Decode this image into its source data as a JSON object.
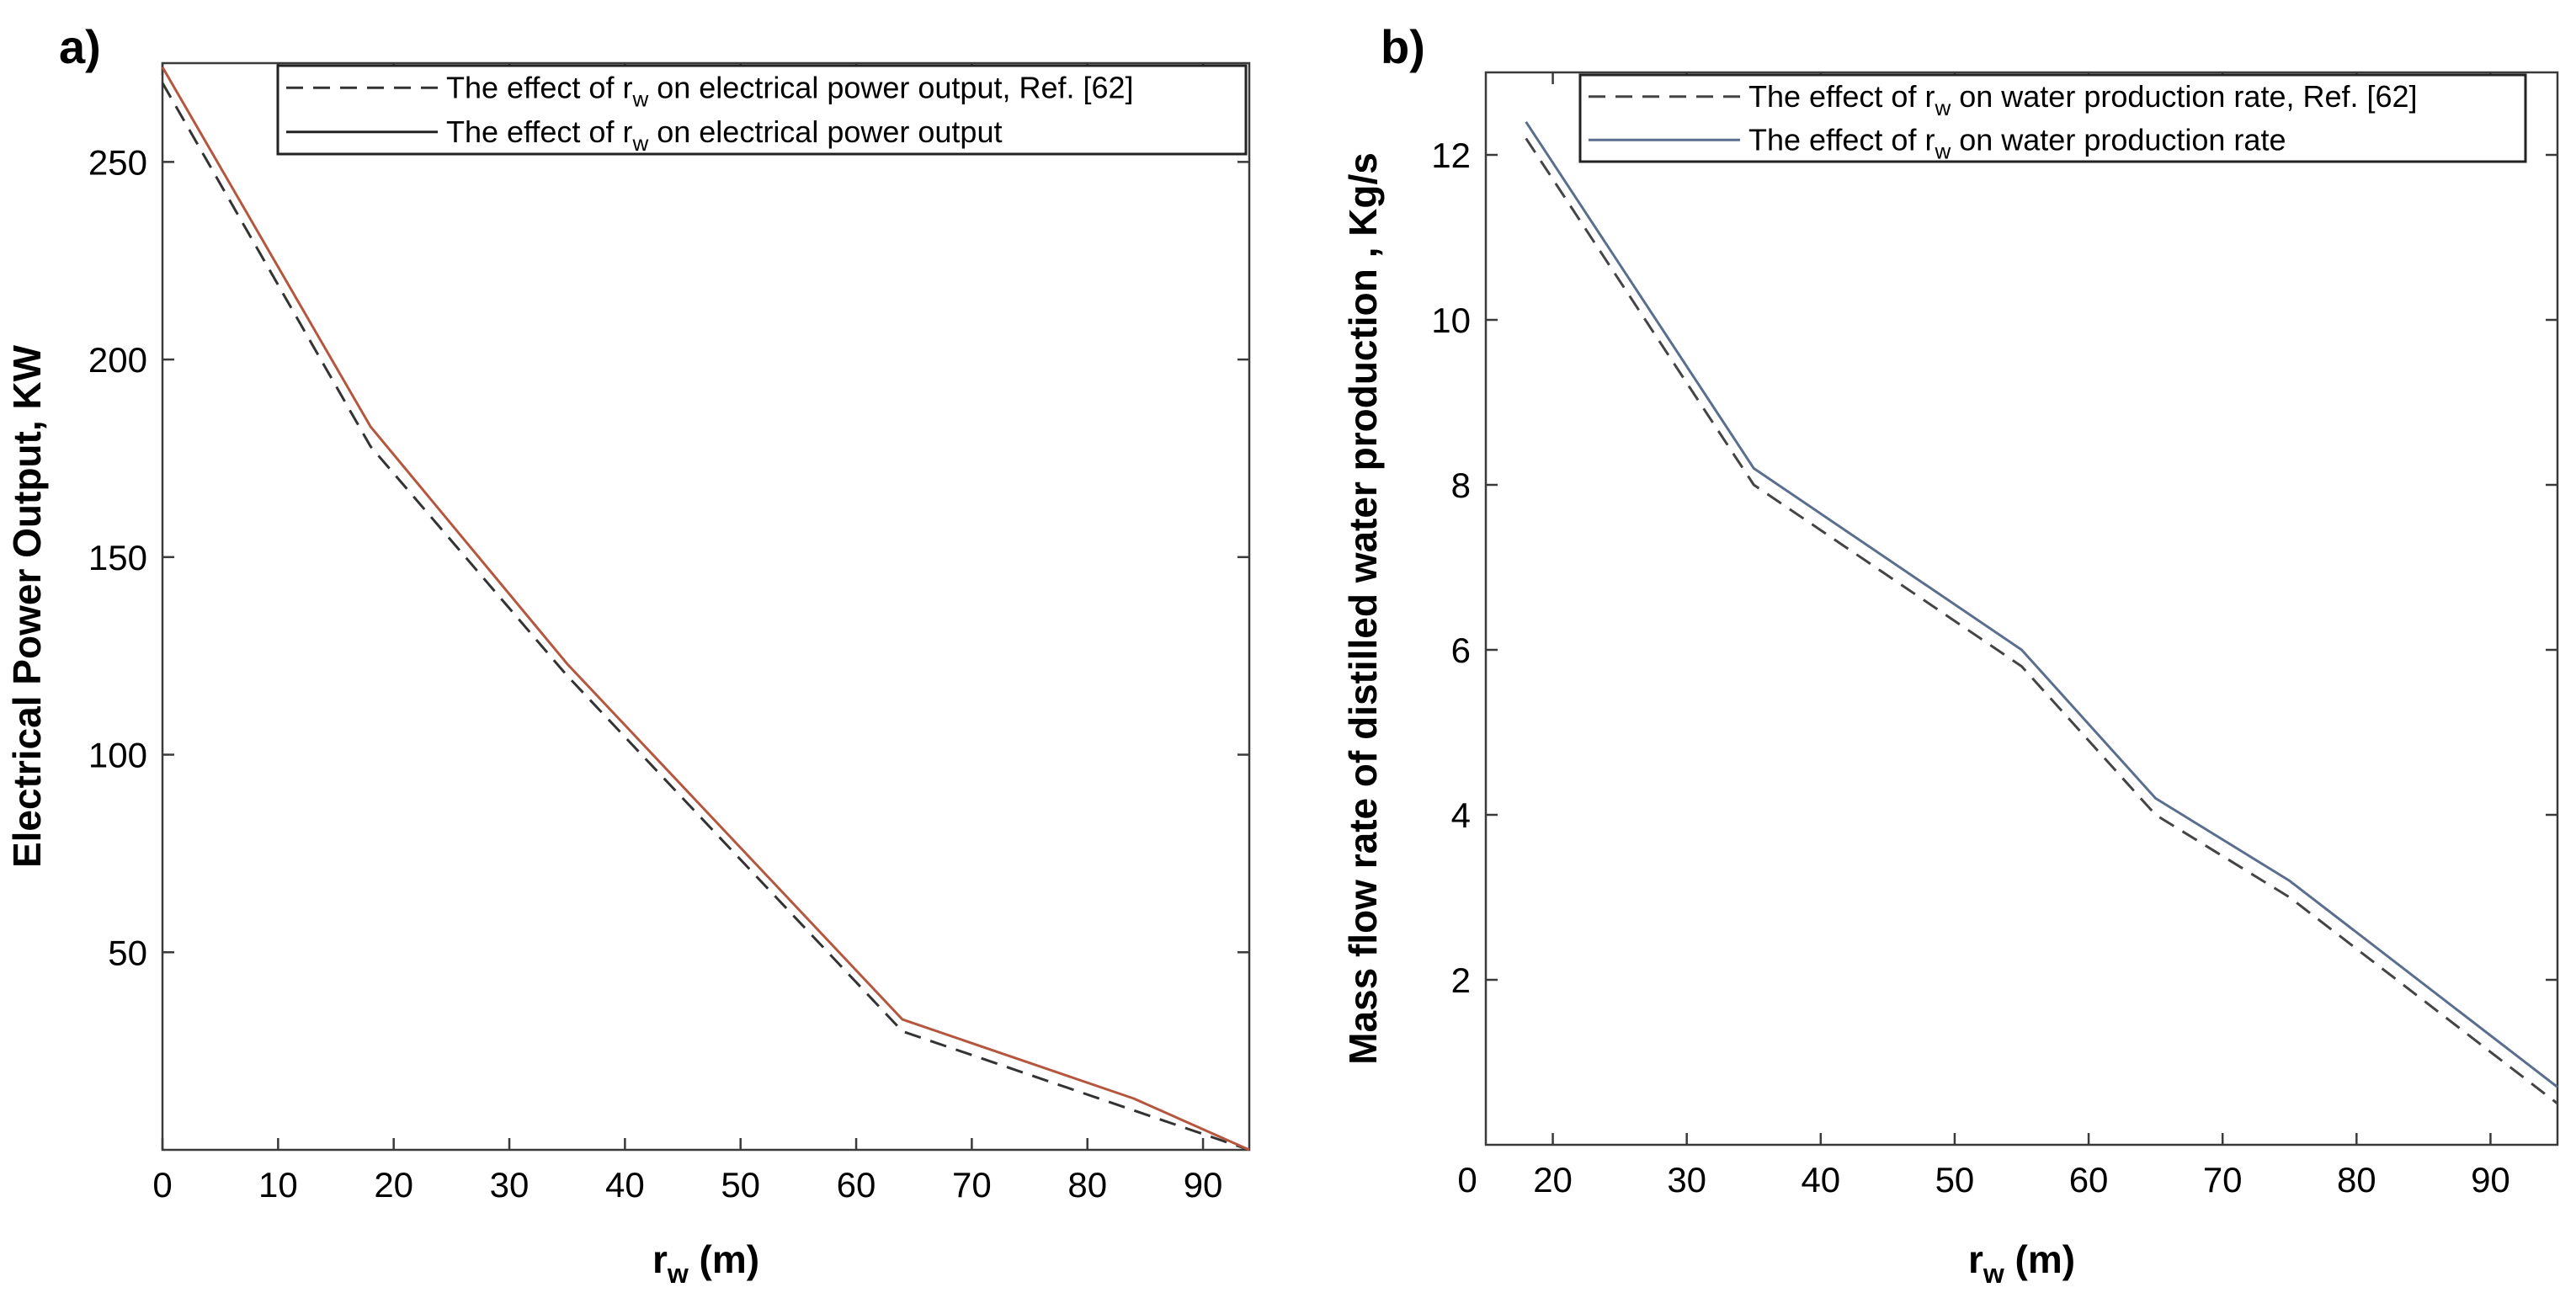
{
  "chart_data": [
    {
      "type": "line",
      "panel_label": "a)",
      "xlabel": "r",
      "xlabel_sub": "w",
      "xlabel_suffix": " (m)",
      "ylabel": "Electrical Power Output, KW",
      "xlim": [
        0,
        94
      ],
      "ylim": [
        0,
        275
      ],
      "xticks": [
        0,
        10,
        20,
        30,
        40,
        50,
        60,
        70,
        80,
        90
      ],
      "yticks": [
        50,
        100,
        150,
        200,
        250
      ],
      "legend_position": "top-right",
      "series": [
        {
          "name": "The effect of r_w on electrical power output, Ref. [62]",
          "legend_pre": "The effect of r",
          "legend_sub": "w",
          "legend_post": " on electrical power output, Ref. [62]",
          "style": "dashed",
          "color": "#333333",
          "x": [
            0,
            18,
            35,
            64,
            84,
            94
          ],
          "y": [
            270,
            178,
            120,
            30,
            10,
            0
          ]
        },
        {
          "name": "The effect of r_w on electrical power output",
          "legend_pre": "The effect of r",
          "legend_sub": "w",
          "legend_post": " on electrical power output",
          "style": "solid",
          "color": "#b5563e",
          "legend_color": "#222222",
          "x": [
            0,
            18,
            35,
            64,
            84,
            94
          ],
          "y": [
            274,
            183,
            123,
            33,
            13,
            0
          ]
        }
      ]
    },
    {
      "type": "line",
      "panel_label": "b)",
      "xlabel": "r",
      "xlabel_sub": "w",
      "xlabel_suffix": " (m)",
      "ylabel": "Mass flow rate of distilled water production , Kg/s",
      "xlim": [
        15,
        95
      ],
      "ylim": [
        0,
        13
      ],
      "xticks": [
        20,
        30,
        40,
        50,
        60,
        70,
        80,
        90
      ],
      "x_origin_label": "0",
      "yticks": [
        2,
        4,
        6,
        8,
        10,
        12
      ],
      "legend_position": "top-right",
      "series": [
        {
          "name": "The effect of r_w on water production rate, Ref. [62]",
          "legend_pre": "The effect of r",
          "legend_sub": "w",
          "legend_post": " on water production rate, Ref. [62]",
          "style": "dashed",
          "color": "#444444",
          "x": [
            18,
            35,
            55,
            65,
            75,
            95
          ],
          "y": [
            12.2,
            8.0,
            5.8,
            4.0,
            3.0,
            0.5
          ]
        },
        {
          "name": "The effect of r_w on water production rate",
          "legend_pre": "The effect of r",
          "legend_sub": "w",
          "legend_post": " on water production rate",
          "style": "solid",
          "color": "#5a6f8e",
          "x": [
            18,
            35,
            55,
            65,
            75,
            95
          ],
          "y": [
            12.4,
            8.2,
            6.0,
            4.2,
            3.2,
            0.7
          ]
        }
      ]
    }
  ]
}
